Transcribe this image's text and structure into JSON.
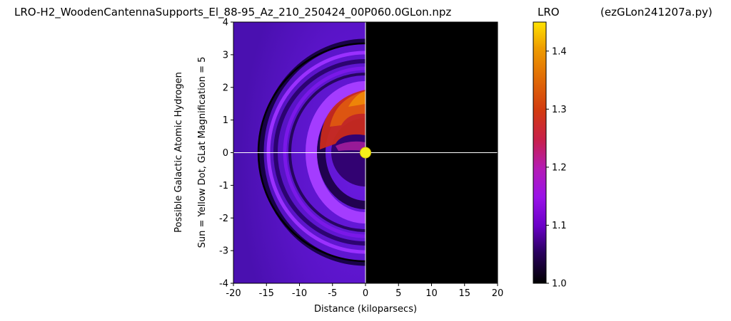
{
  "chart_data": {
    "type": "heatmap",
    "title": "LRO-H2_WoodenCantennaSupports_El_88-95_Az_210_250424_00P060.0GLon.npz",
    "xlabel": "Distance (kiloparsecs)",
    "ylabel_line1": "Possible Galactic Atomic Hydrogen",
    "ylabel_line2": "Sun = Yellow Dot, GLat Magnification = 5",
    "xlim": [
      -20,
      20
    ],
    "ylim": [
      -4,
      4
    ],
    "xticks": [
      -20,
      -15,
      -10,
      -5,
      0,
      5,
      10,
      15,
      20
    ],
    "yticks": [
      -4,
      -3,
      -2,
      -1,
      0,
      1,
      2,
      3,
      4
    ],
    "sun": {
      "x": 0,
      "y": 0,
      "color": "#f5ee1a"
    },
    "crosshair": {
      "x": 0,
      "y": 0,
      "color": "#ffffff"
    },
    "colorbar": {
      "label": "LRO",
      "colormap": "gnuplot",
      "range": [
        1.0,
        1.45
      ],
      "ticks": [
        1.0,
        1.1,
        1.2,
        1.3,
        1.4
      ]
    },
    "empty_region_color": "#000000"
  },
  "script_label": "(ezGLon241207a.py)"
}
